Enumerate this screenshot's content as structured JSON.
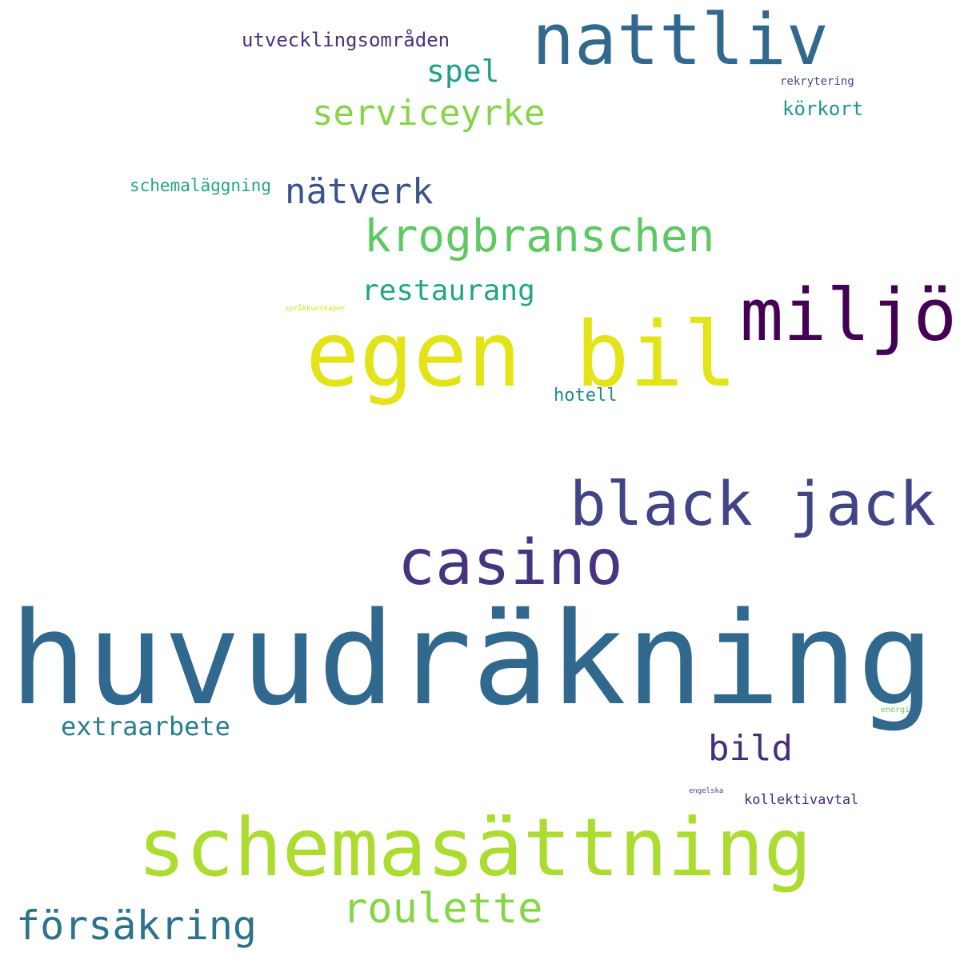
{
  "words": {
    "huvudrakning": {
      "text": "huvudräkning",
      "color": "#31688e"
    },
    "egen_bil": {
      "text": "egen bil",
      "color": "#e3e418"
    },
    "schemasattning": {
      "text": "schemasättning",
      "color": "#addc30"
    },
    "nattliv": {
      "text": "nattliv",
      "color": "#31688e"
    },
    "miljo": {
      "text": "miljö",
      "color": "#440154"
    },
    "casino": {
      "text": "casino",
      "color": "#463480"
    },
    "black_jack": {
      "text": "black jack",
      "color": "#414487"
    },
    "krogbranschen": {
      "text": "krogbranschen",
      "color": "#5ec962"
    },
    "roulette": {
      "text": "roulette",
      "color": "#86d549"
    },
    "forsakring": {
      "text": "försäkring",
      "color": "#2c728e"
    },
    "serviceyrke": {
      "text": "serviceyrke",
      "color": "#86d549"
    },
    "natverk": {
      "text": "nätverk",
      "color": "#3b528b"
    },
    "bild": {
      "text": "bild",
      "color": "#472d7b"
    },
    "restaurang": {
      "text": "restaurang",
      "color": "#21a685"
    },
    "spel": {
      "text": "spel",
      "color": "#1fa088"
    },
    "extraarbete": {
      "text": "extraarbete",
      "color": "#287c8e"
    },
    "utvecklingsomraden": {
      "text": "utvecklingsområden",
      "color": "#48307d"
    },
    "schemalaggning": {
      "text": "schemaläggning",
      "color": "#20a486"
    },
    "korkort": {
      "text": "körkort",
      "color": "#1f968b"
    },
    "hotell": {
      "text": "hotell",
      "color": "#23898e"
    },
    "kollektivavtal": {
      "text": "kollektivavtal",
      "color": "#482878"
    },
    "rekrytering": {
      "text": "rekrytering",
      "color": "#3e4a89"
    },
    "energi": {
      "text": "energi",
      "color": "#6ccd5a"
    },
    "engelska": {
      "text": "engelska",
      "color": "#423f85"
    },
    "sprakkunskaper": {
      "text": "språkkunskaper",
      "color": "#d8e219"
    }
  }
}
